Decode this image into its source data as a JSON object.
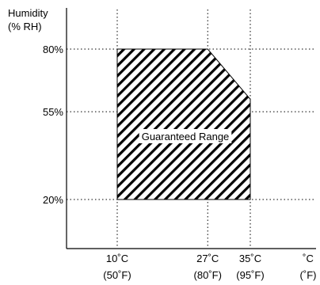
{
  "chart_data": {
    "type": "area",
    "title": "",
    "ylabel_line1": "Humidity",
    "ylabel_line2": "(% RH)",
    "xunit_c": "˚C",
    "xunit_f": "(˚F)",
    "xlim": [
      0,
      45
    ],
    "ylim": [
      0,
      100
    ],
    "y_ticks": [
      {
        "value": 20,
        "label": "20%"
      },
      {
        "value": 55,
        "label": "55%"
      },
      {
        "value": 80,
        "label": "80%"
      }
    ],
    "x_ticks": [
      {
        "value": 10,
        "label_c": "10˚C",
        "label_f": "(50˚F)"
      },
      {
        "value": 27,
        "label_c": "27˚C",
        "label_f": "(80˚F)"
      },
      {
        "value": 35,
        "label_c": "35˚C",
        "label_f": "(95˚F)"
      }
    ],
    "region": {
      "label": "Guaranteed Range",
      "points": [
        [
          10,
          20
        ],
        [
          10,
          80
        ],
        [
          27,
          80
        ],
        [
          35,
          60
        ],
        [
          35,
          20
        ]
      ]
    },
    "grid": "dotted"
  }
}
